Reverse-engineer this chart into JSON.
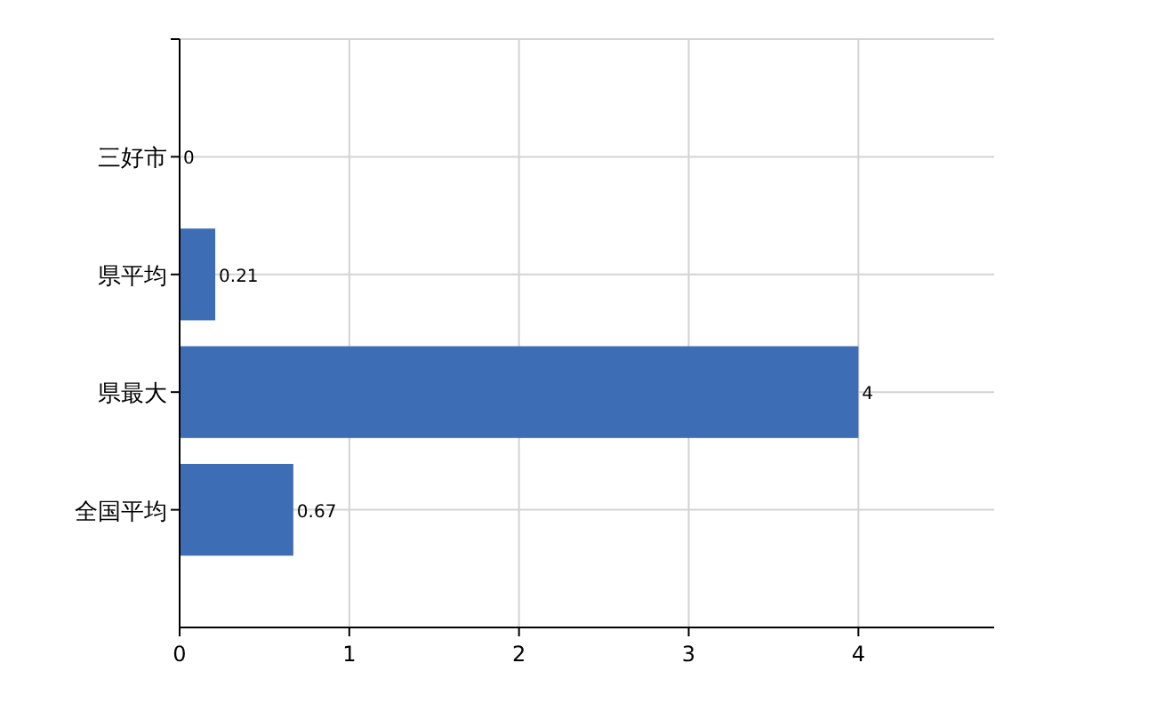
{
  "chart_data": {
    "type": "bar",
    "orientation": "horizontal",
    "categories": [
      "三好市",
      "県平均",
      "県最大",
      "全国平均"
    ],
    "values": [
      0,
      0.21,
      4,
      0.67
    ],
    "color": "#3d6db4",
    "xlim": [
      0,
      4.8
    ],
    "xticks": [
      0,
      1,
      2,
      3,
      4
    ],
    "grid": true,
    "data_labels": true
  }
}
